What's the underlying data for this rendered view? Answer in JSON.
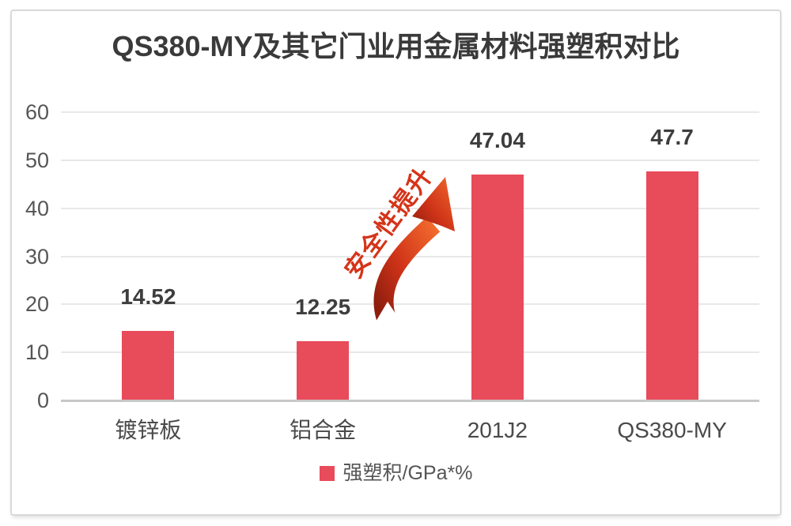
{
  "page": {
    "background": "#ffffff",
    "frame_border_color": "#d9d9d9"
  },
  "chart_data": {
    "type": "bar",
    "title": "QS380-MY及其它门业用金属材料强塑积对比",
    "categories": [
      "镀锌板",
      "铝合金",
      "201J2",
      "QS380-MY"
    ],
    "values": [
      14.52,
      12.25,
      47.04,
      47.7
    ],
    "value_labels": [
      "14.52",
      "12.25",
      "47.04",
      "47.7"
    ],
    "series": [
      {
        "name": "强塑积/GPa*%",
        "values": [
          14.52,
          12.25,
          47.04,
          47.7
        ]
      }
    ],
    "xlabel": "",
    "ylabel": "",
    "ylim": [
      0,
      60
    ],
    "yticks": [
      0,
      10,
      20,
      30,
      40,
      50,
      60
    ],
    "grid": "horizontal",
    "bar_color": "#e84b5a",
    "legend": {
      "label": "强塑积/GPa*%",
      "position": "bottom",
      "swatch_color": "#e84b5a"
    },
    "annotation": {
      "text": "安全性提升",
      "color": "#d53419",
      "icon": "up-right-curved-arrow"
    }
  },
  "colors": {
    "title_text": "#3a3a3a",
    "axis_text": "#565656",
    "gridline": "#e8e8e8",
    "baseline": "#c7c7c7",
    "arrow_dark": "#8e1d0e",
    "arrow_mid": "#cf3418",
    "arrow_bright": "#f26a2e"
  }
}
